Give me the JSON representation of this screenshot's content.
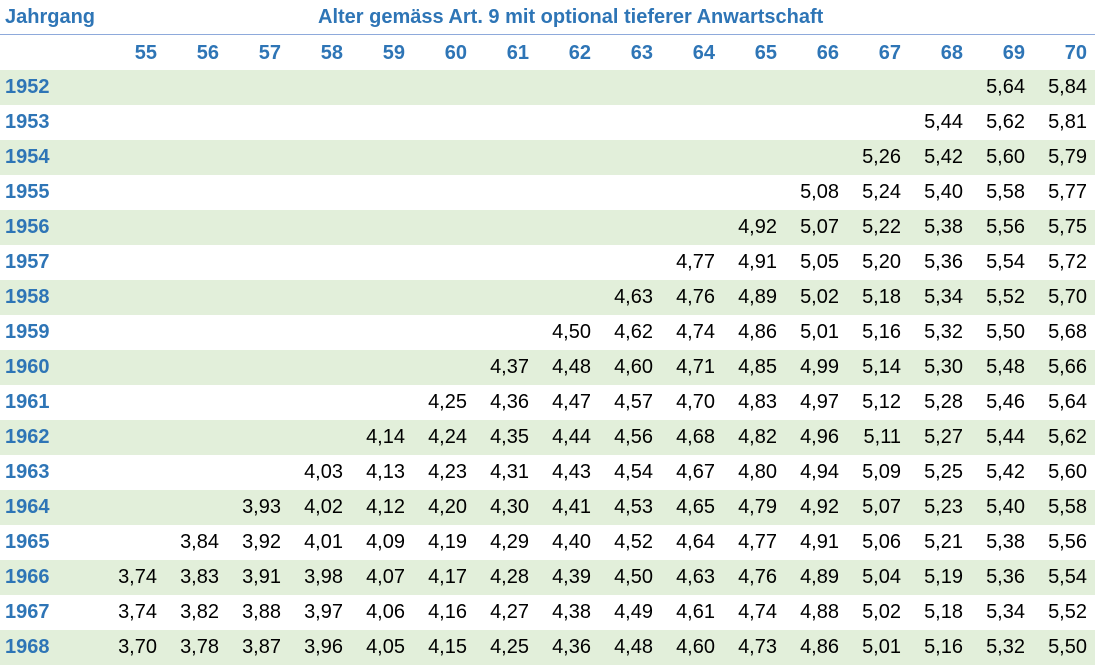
{
  "header": {
    "jahrgang_label": "Jahrgang",
    "title": "Alter gemäss Art. 9 mit optional tieferer Anwartschaft"
  },
  "ages": [
    "55",
    "56",
    "57",
    "58",
    "59",
    "60",
    "61",
    "62",
    "63",
    "64",
    "65",
    "66",
    "67",
    "68",
    "69",
    "70"
  ],
  "rows": [
    {
      "year": "1952",
      "values": [
        "",
        "",
        "",
        "",
        "",
        "",
        "",
        "",
        "",
        "",
        "",
        "",
        "",
        "",
        "5,64",
        "5,84"
      ]
    },
    {
      "year": "1953",
      "values": [
        "",
        "",
        "",
        "",
        "",
        "",
        "",
        "",
        "",
        "",
        "",
        "",
        "",
        "5,44",
        "5,62",
        "5,81"
      ]
    },
    {
      "year": "1954",
      "values": [
        "",
        "",
        "",
        "",
        "",
        "",
        "",
        "",
        "",
        "",
        "",
        "",
        "5,26",
        "5,42",
        "5,60",
        "5,79"
      ]
    },
    {
      "year": "1955",
      "values": [
        "",
        "",
        "",
        "",
        "",
        "",
        "",
        "",
        "",
        "",
        "",
        "5,08",
        "5,24",
        "5,40",
        "5,58",
        "5,77"
      ]
    },
    {
      "year": "1956",
      "values": [
        "",
        "",
        "",
        "",
        "",
        "",
        "",
        "",
        "",
        "",
        "4,92",
        "5,07",
        "5,22",
        "5,38",
        "5,56",
        "5,75"
      ]
    },
    {
      "year": "1957",
      "values": [
        "",
        "",
        "",
        "",
        "",
        "",
        "",
        "",
        "",
        "4,77",
        "4,91",
        "5,05",
        "5,20",
        "5,36",
        "5,54",
        "5,72"
      ]
    },
    {
      "year": "1958",
      "values": [
        "",
        "",
        "",
        "",
        "",
        "",
        "",
        "",
        "4,63",
        "4,76",
        "4,89",
        "5,02",
        "5,18",
        "5,34",
        "5,52",
        "5,70"
      ]
    },
    {
      "year": "1959",
      "values": [
        "",
        "",
        "",
        "",
        "",
        "",
        "",
        "4,50",
        "4,62",
        "4,74",
        "4,86",
        "5,01",
        "5,16",
        "5,32",
        "5,50",
        "5,68"
      ]
    },
    {
      "year": "1960",
      "values": [
        "",
        "",
        "",
        "",
        "",
        "",
        "4,37",
        "4,48",
        "4,60",
        "4,71",
        "4,85",
        "4,99",
        "5,14",
        "5,30",
        "5,48",
        "5,66"
      ]
    },
    {
      "year": "1961",
      "values": [
        "",
        "",
        "",
        "",
        "",
        "4,25",
        "4,36",
        "4,47",
        "4,57",
        "4,70",
        "4,83",
        "4,97",
        "5,12",
        "5,28",
        "5,46",
        "5,64"
      ]
    },
    {
      "year": "1962",
      "values": [
        "",
        "",
        "",
        "",
        "4,14",
        "4,24",
        "4,35",
        "4,44",
        "4,56",
        "4,68",
        "4,82",
        "4,96",
        "5,11",
        "5,27",
        "5,44",
        "5,62"
      ]
    },
    {
      "year": "1963",
      "values": [
        "",
        "",
        "",
        "4,03",
        "4,13",
        "4,23",
        "4,31",
        "4,43",
        "4,54",
        "4,67",
        "4,80",
        "4,94",
        "5,09",
        "5,25",
        "5,42",
        "5,60"
      ]
    },
    {
      "year": "1964",
      "values": [
        "",
        "",
        "3,93",
        "4,02",
        "4,12",
        "4,20",
        "4,30",
        "4,41",
        "4,53",
        "4,65",
        "4,79",
        "4,92",
        "5,07",
        "5,23",
        "5,40",
        "5,58"
      ]
    },
    {
      "year": "1965",
      "values": [
        "",
        "3,84",
        "3,92",
        "4,01",
        "4,09",
        "4,19",
        "4,29",
        "4,40",
        "4,52",
        "4,64",
        "4,77",
        "4,91",
        "5,06",
        "5,21",
        "5,38",
        "5,56"
      ]
    },
    {
      "year": "1966",
      "values": [
        "3,74",
        "3,83",
        "3,91",
        "3,98",
        "4,07",
        "4,17",
        "4,28",
        "4,39",
        "4,50",
        "4,63",
        "4,76",
        "4,89",
        "5,04",
        "5,19",
        "5,36",
        "5,54"
      ]
    },
    {
      "year": "1967",
      "values": [
        "3,74",
        "3,82",
        "3,88",
        "3,97",
        "4,06",
        "4,16",
        "4,27",
        "4,38",
        "4,49",
        "4,61",
        "4,74",
        "4,88",
        "5,02",
        "5,18",
        "5,34",
        "5,52"
      ]
    },
    {
      "year": "1968",
      "values": [
        "3,70",
        "3,78",
        "3,87",
        "3,96",
        "4,05",
        "4,15",
        "4,25",
        "4,36",
        "4,48",
        "4,60",
        "4,73",
        "4,86",
        "5,01",
        "5,16",
        "5,32",
        "5,50"
      ]
    }
  ],
  "colors": {
    "header_text": "#2E75B6",
    "row_shade": "#E2EFDA",
    "value_text": "#000000"
  }
}
